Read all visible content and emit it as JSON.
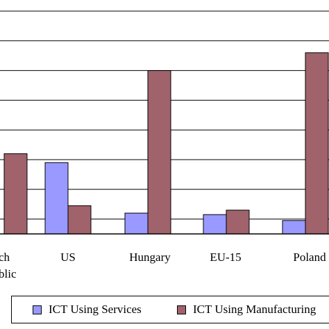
{
  "chart_data": {
    "type": "bar",
    "categories": [
      "Czech Republic",
      "US",
      "Hungary",
      "EU-15",
      "Poland"
    ],
    "category_lines": [
      [
        "ch",
        "blic"
      ],
      [
        "US"
      ],
      [
        "Hungary"
      ],
      [
        "EU-15"
      ],
      [
        "Poland"
      ]
    ],
    "series": [
      {
        "name": "ICT Using Services",
        "values": [
          null,
          2.4,
          0.7,
          0.65,
          0.45
        ],
        "color": "#9999ff"
      },
      {
        "name": "ICT Using Manufacturing",
        "values": [
          2.7,
          0.95,
          5.5,
          0.8,
          6.1
        ],
        "color": "#a0626b"
      }
    ],
    "legend": {
      "position": "bottom",
      "items": [
        "ICT Using Services",
        "ICT Using Manufacturing"
      ]
    },
    "ylim": [
      0,
      7.5
    ],
    "grid": true,
    "title": "",
    "xlabel": "",
    "ylabel": ""
  }
}
